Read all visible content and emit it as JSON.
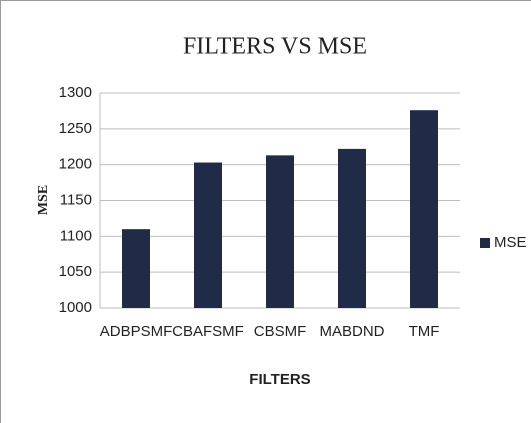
{
  "chart_data": {
    "type": "bar",
    "title": "FILTERS VS MSE",
    "x_label": "FILTERS",
    "y_label": "MSE",
    "categories": [
      "ADBPSMF",
      "CBAFSMF",
      "CBSMF",
      "MABDND",
      "TMF"
    ],
    "series": [
      {
        "name": "MSE",
        "color": "#1f2b47",
        "values": [
          1110,
          1203,
          1213,
          1222,
          1276
        ]
      }
    ],
    "ylim": [
      1000,
      1300
    ],
    "yticks": [
      1000,
      1050,
      1100,
      1150,
      1200,
      1250,
      1300
    ],
    "grid": true,
    "legend": "right"
  }
}
